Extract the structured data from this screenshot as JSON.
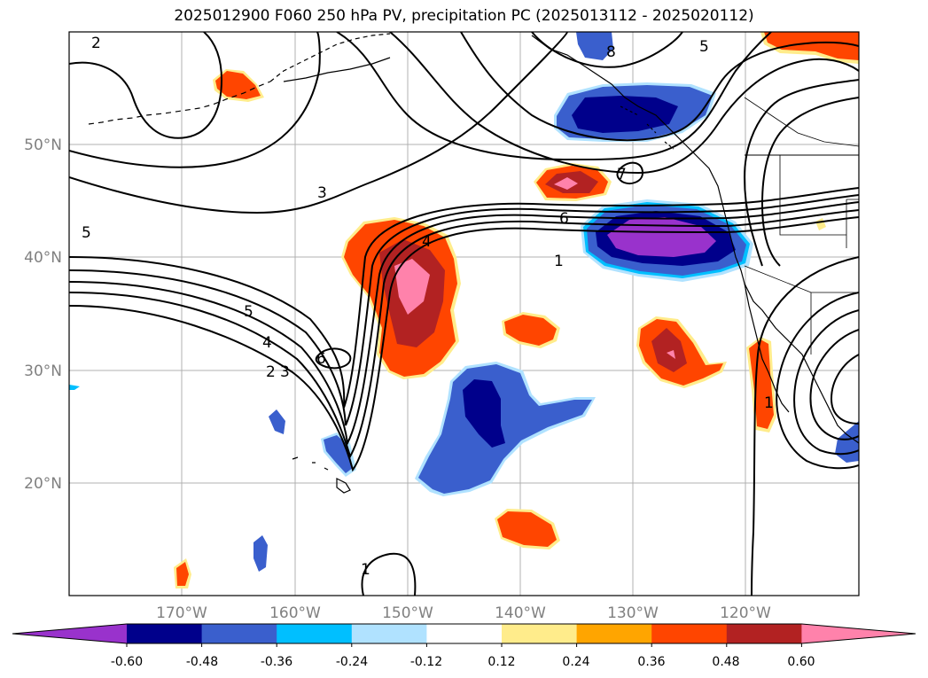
{
  "title": "2025012900 F060 250 hPa PV, precipitation PC (2025013112 - 2025020112)",
  "lon_labels": [
    "170°W",
    "160°W",
    "150°W",
    "140°W",
    "130°W",
    "120°W"
  ],
  "lat_labels": [
    "50°N",
    "40°N",
    "30°N",
    "20°N"
  ],
  "colorbar": {
    "ticks": [
      "-0.60",
      "-0.48",
      "-0.36",
      "-0.24",
      "-0.12",
      "0.12",
      "0.24",
      "0.36",
      "0.48",
      "0.60"
    ],
    "colors": [
      "#9932cc",
      "#00008b",
      "#3a5fcd",
      "#00bfff",
      "#b0e2ff",
      "#ffffff",
      "#ffec8b",
      "#ffa500",
      "#ff4500",
      "#b22222",
      "#ff82ab"
    ]
  },
  "contour_labels": [
    {
      "text": "2",
      "id": "lbl-2-nw"
    },
    {
      "text": "3",
      "id": "lbl-3"
    },
    {
      "text": "5",
      "id": "lbl-5-w"
    },
    {
      "text": "4",
      "id": "lbl-4"
    },
    {
      "text": "6",
      "id": "lbl-6"
    },
    {
      "text": "1",
      "id": "lbl-1"
    },
    {
      "text": "5",
      "id": "lbl-5-sw"
    },
    {
      "text": "4",
      "id": "lbl-4-sw"
    },
    {
      "text": "2",
      "id": "lbl-2-sw"
    },
    {
      "text": "3",
      "id": "lbl-3-sw"
    },
    {
      "text": "6",
      "id": "lbl-6-sw"
    },
    {
      "text": "8",
      "id": "lbl-8"
    },
    {
      "text": "5",
      "id": "lbl-5-ne"
    },
    {
      "text": "1",
      "id": "lbl-1-se"
    },
    {
      "text": "1",
      "id": "lbl-1-s"
    },
    {
      "text": "7",
      "id": "lbl-7"
    }
  ]
}
